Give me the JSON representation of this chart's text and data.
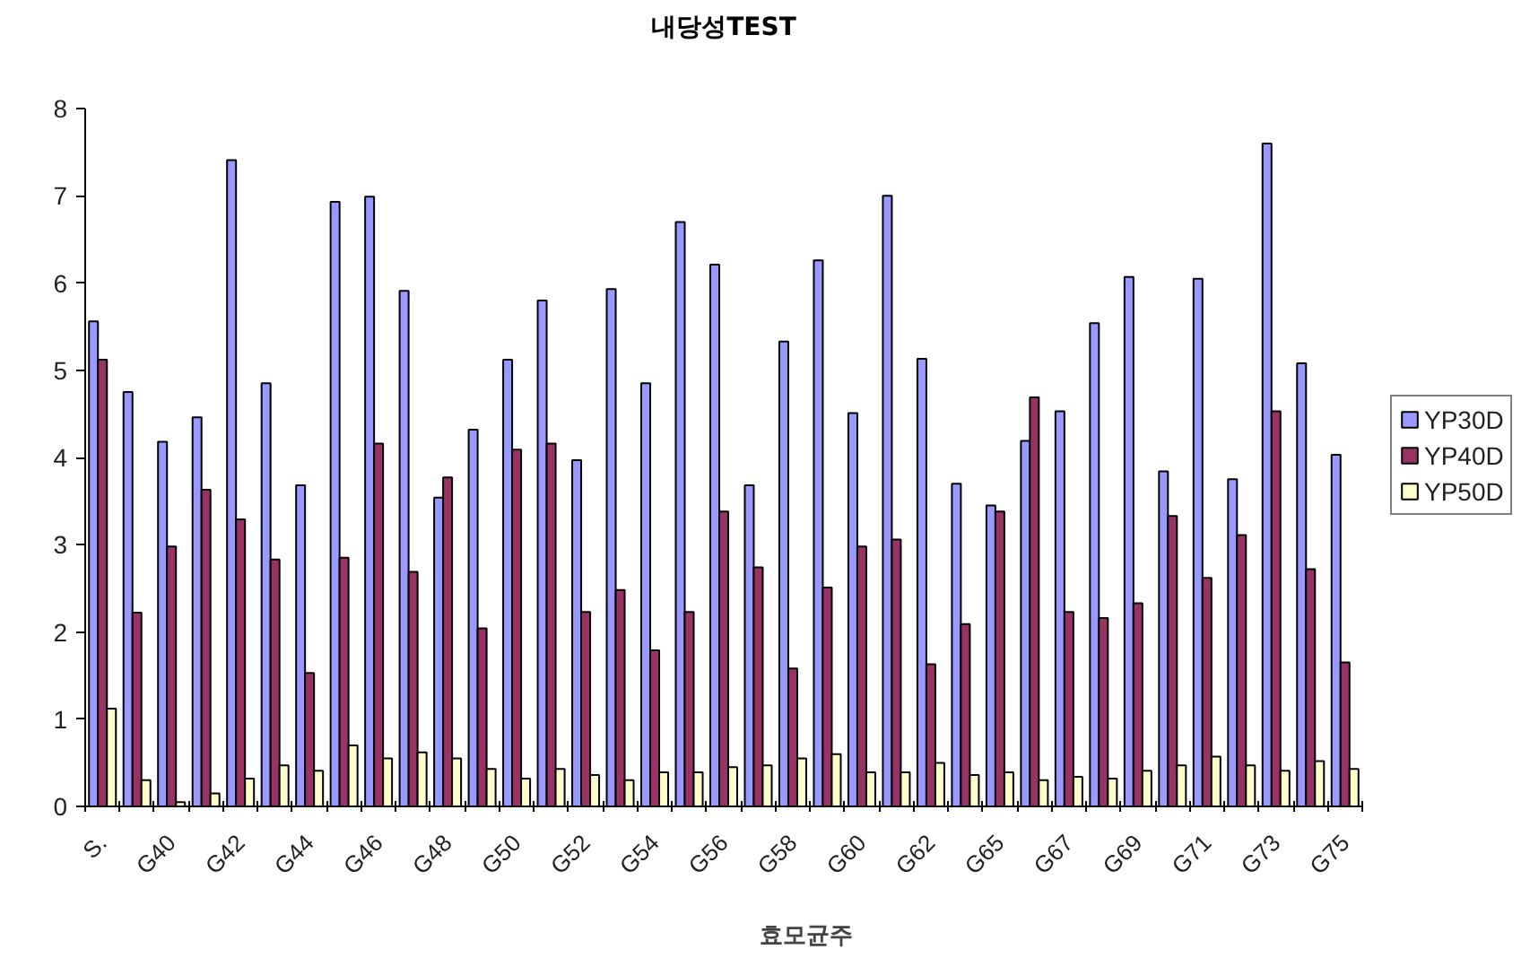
{
  "chart_data": {
    "type": "bar",
    "title": "내당성TEST",
    "xlabel": "효모균주",
    "categories": [
      "S.",
      null,
      "G40",
      null,
      "G42",
      null,
      "G44",
      null,
      "G46",
      null,
      "G48",
      null,
      "G50",
      null,
      "G52",
      null,
      "G54",
      null,
      "G56",
      null,
      "G58",
      null,
      "G60",
      null,
      "G62",
      null,
      "G65",
      null,
      "G67",
      null,
      "G69",
      null,
      "G71",
      null,
      "G73",
      null,
      "G75"
    ],
    "series": [
      {
        "name": "YP30D",
        "color": "#9999ff",
        "values": [
          5.56,
          4.75,
          4.18,
          4.46,
          7.41,
          4.85,
          3.68,
          6.93,
          6.99,
          5.91,
          3.54,
          4.32,
          5.12,
          5.8,
          3.97,
          5.93,
          4.85,
          6.7,
          6.21,
          3.68,
          5.33,
          6.26,
          4.51,
          7.0,
          5.13,
          3.7,
          3.45,
          4.19,
          4.53,
          5.54,
          6.07,
          3.84,
          6.05,
          3.75,
          7.6,
          5.08,
          4.03
        ]
      },
      {
        "name": "YP40D",
        "color": "#993366",
        "values": [
          5.12,
          2.22,
          2.98,
          3.63,
          3.29,
          2.83,
          1.53,
          2.85,
          4.16,
          2.69,
          3.77,
          2.04,
          4.09,
          4.16,
          2.23,
          2.48,
          1.79,
          2.23,
          3.38,
          2.74,
          1.58,
          2.51,
          2.98,
          3.06,
          1.63,
          2.09,
          3.38,
          4.69,
          2.23,
          2.16,
          2.33,
          3.33,
          2.62,
          3.11,
          4.53,
          2.72,
          1.65
        ]
      },
      {
        "name": "YP50D",
        "color": "#ffffcc",
        "values": [
          1.12,
          0.3,
          0.05,
          0.15,
          0.32,
          0.47,
          0.41,
          0.7,
          0.55,
          0.62,
          0.55,
          0.43,
          0.32,
          0.43,
          0.36,
          0.3,
          0.39,
          0.39,
          0.45,
          0.47,
          0.55,
          0.6,
          0.39,
          0.39,
          0.5,
          0.36,
          0.39,
          0.3,
          0.34,
          0.32,
          0.41,
          0.47,
          0.57,
          0.47,
          0.41,
          0.52,
          0.43
        ]
      }
    ],
    "ylim": [
      0,
      8
    ],
    "yticks": [
      0,
      1,
      2,
      3,
      4,
      5,
      6,
      7,
      8
    ],
    "legend": "right"
  }
}
